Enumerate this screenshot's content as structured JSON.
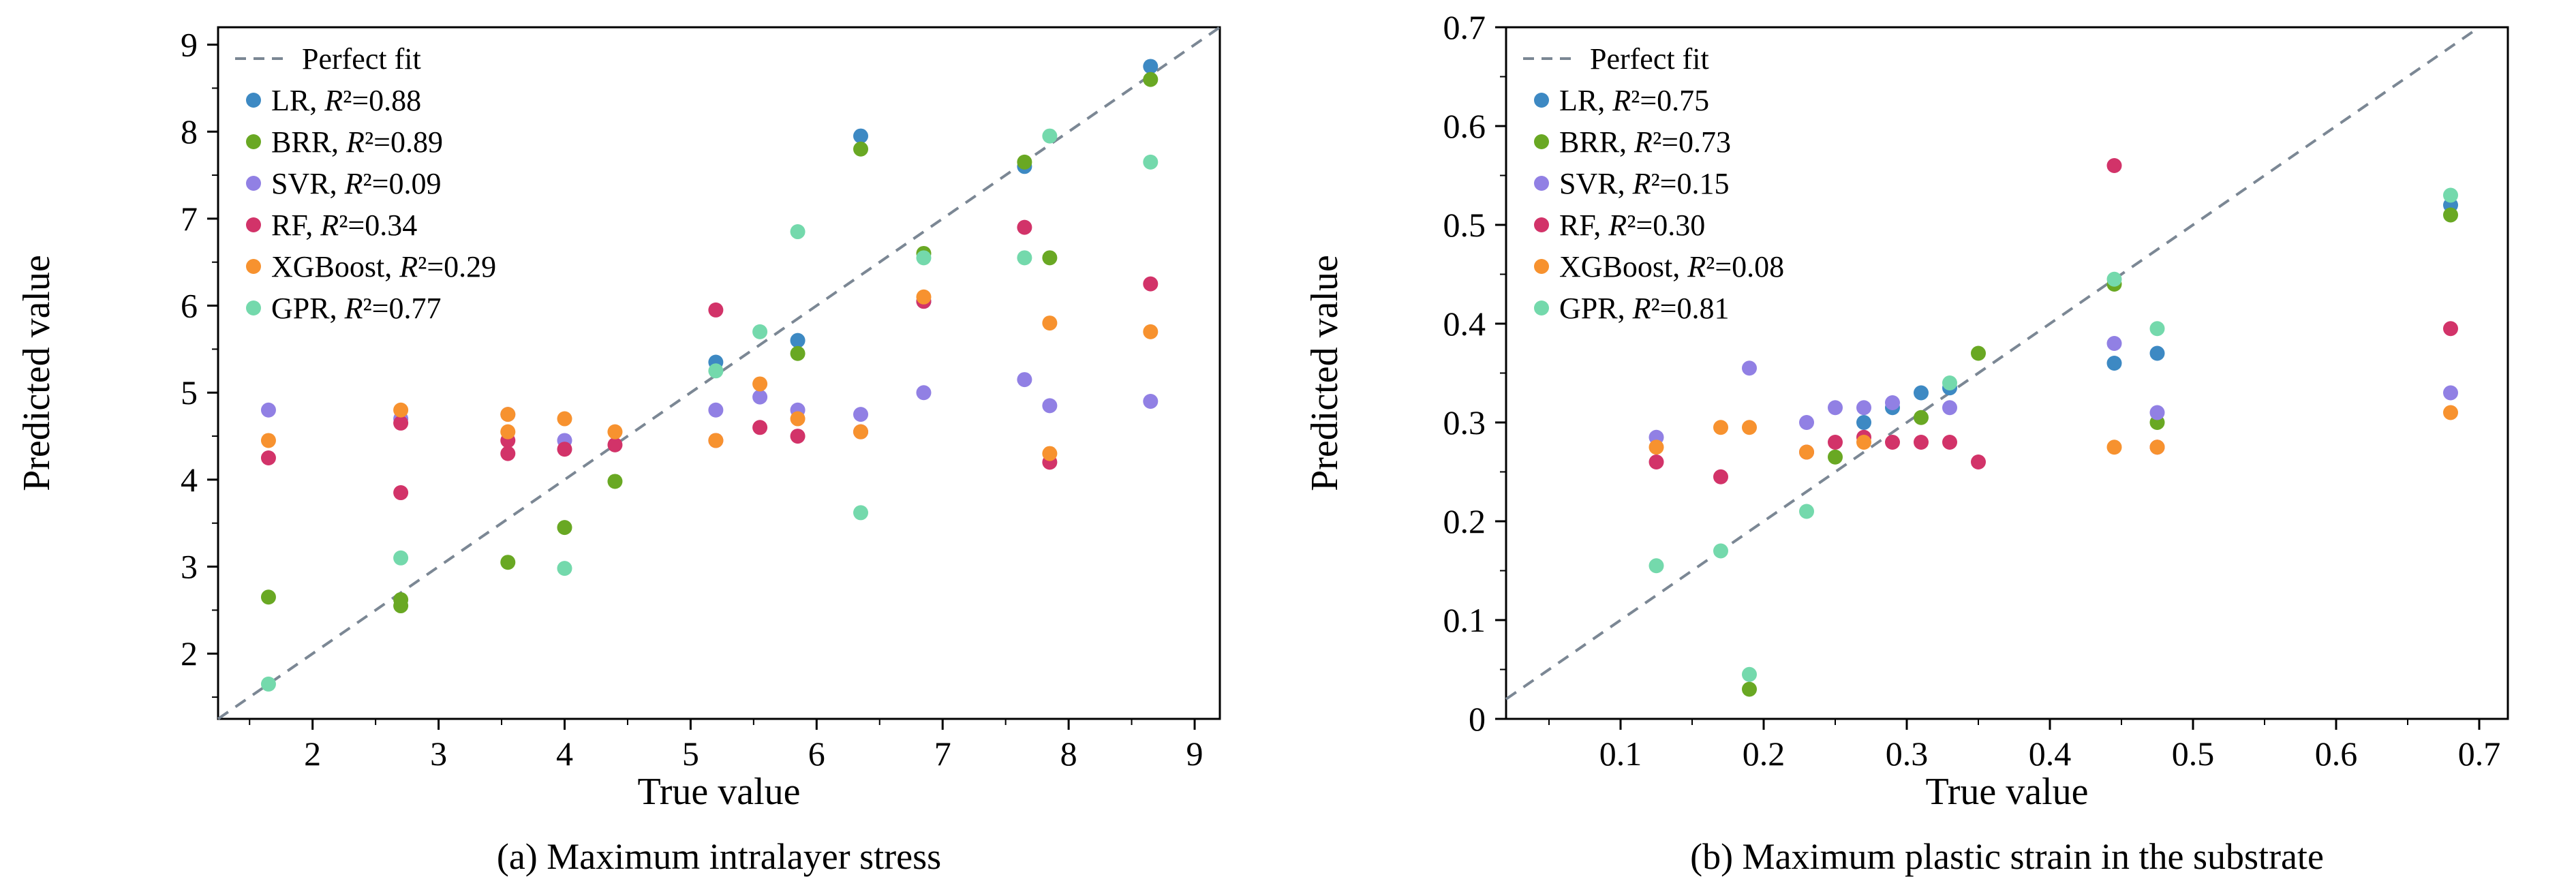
{
  "page": {
    "background": "#ffffff"
  },
  "chart_data": [
    {
      "type": "scatter",
      "caption": "(a) Maximum intralayer stress",
      "xlabel": "True value",
      "ylabel": "Predicted value",
      "xlim": [
        1.25,
        9.2
      ],
      "ylim": [
        1.25,
        9.2
      ],
      "x_minor_step": 0.5,
      "y_minor_step": 0.5,
      "xticks": {
        "values": [
          2,
          3,
          4,
          5,
          6,
          7,
          8,
          9
        ],
        "labels": [
          "2",
          "3",
          "4",
          "5",
          "6",
          "7",
          "8",
          "9"
        ]
      },
      "yticks": {
        "values": [
          2,
          3,
          4,
          5,
          6,
          7,
          8,
          9
        ],
        "labels": [
          "2",
          "3",
          "4",
          "5",
          "6",
          "7",
          "8",
          "9"
        ]
      },
      "grid": false,
      "legend_position": "top-left",
      "perfect_fit": {
        "label": "Perfect fit",
        "color": "#7b8794"
      },
      "series": [
        {
          "name": "LR",
          "r2": "0.88",
          "color": "#3d89c3",
          "points": [
            [
              5.2,
              5.35
            ],
            [
              5.85,
              5.6
            ],
            [
              6.35,
              7.95
            ],
            [
              6.85,
              6.05
            ],
            [
              7.65,
              7.6
            ],
            [
              8.65,
              8.75
            ]
          ]
        },
        {
          "name": "BRR",
          "r2": "0.89",
          "color": "#69a823",
          "points": [
            [
              1.65,
              2.65
            ],
            [
              2.7,
              2.55
            ],
            [
              2.7,
              2.62
            ],
            [
              3.55,
              3.05
            ],
            [
              4.0,
              3.45
            ],
            [
              4.4,
              3.98
            ],
            [
              5.85,
              5.45
            ],
            [
              6.35,
              7.8
            ],
            [
              6.85,
              6.6
            ],
            [
              7.65,
              7.65
            ],
            [
              7.85,
              6.55
            ],
            [
              8.65,
              8.6
            ]
          ]
        },
        {
          "name": "SVR",
          "r2": "0.09",
          "color": "#9180e4",
          "points": [
            [
              1.65,
              4.8
            ],
            [
              2.7,
              4.7
            ],
            [
              3.55,
              4.75
            ],
            [
              4.0,
              4.45
            ],
            [
              5.2,
              4.8
            ],
            [
              5.55,
              4.95
            ],
            [
              5.85,
              4.8
            ],
            [
              6.35,
              4.75
            ],
            [
              6.85,
              5.0
            ],
            [
              7.65,
              5.15
            ],
            [
              7.85,
              4.85
            ],
            [
              8.65,
              4.9
            ]
          ]
        },
        {
          "name": "RF",
          "r2": "0.34",
          "color": "#d23369",
          "points": [
            [
              1.65,
              4.25
            ],
            [
              2.7,
              3.85
            ],
            [
              2.7,
              4.65
            ],
            [
              3.55,
              4.3
            ],
            [
              3.55,
              4.45
            ],
            [
              4.0,
              4.35
            ],
            [
              4.4,
              4.4
            ],
            [
              5.2,
              4.45
            ],
            [
              5.2,
              5.95
            ],
            [
              5.55,
              4.6
            ],
            [
              5.85,
              4.5
            ],
            [
              6.35,
              4.55
            ],
            [
              6.85,
              6.05
            ],
            [
              7.65,
              6.9
            ],
            [
              7.85,
              4.2
            ],
            [
              8.65,
              6.25
            ]
          ]
        },
        {
          "name": "XGBoost",
          "r2": "0.29",
          "color": "#f7922f",
          "points": [
            [
              1.65,
              4.45
            ],
            [
              2.7,
              4.8
            ],
            [
              3.55,
              4.55
            ],
            [
              3.55,
              4.75
            ],
            [
              4.0,
              4.7
            ],
            [
              4.4,
              4.55
            ],
            [
              5.2,
              4.45
            ],
            [
              5.55,
              5.1
            ],
            [
              5.85,
              4.7
            ],
            [
              6.35,
              4.55
            ],
            [
              6.85,
              6.1
            ],
            [
              7.85,
              5.8
            ],
            [
              7.85,
              4.3
            ],
            [
              8.65,
              5.7
            ]
          ]
        },
        {
          "name": "GPR",
          "r2": "0.77",
          "color": "#74d9ac",
          "points": [
            [
              1.65,
              1.65
            ],
            [
              2.7,
              3.1
            ],
            [
              4.0,
              2.98
            ],
            [
              5.2,
              5.25
            ],
            [
              5.55,
              5.7
            ],
            [
              5.85,
              6.85
            ],
            [
              6.35,
              3.62
            ],
            [
              6.85,
              6.55
            ],
            [
              7.65,
              6.55
            ],
            [
              7.85,
              7.95
            ],
            [
              8.65,
              7.65
            ]
          ]
        }
      ]
    },
    {
      "type": "scatter",
      "caption": "(b) Maximum plastic strain in the substrate",
      "xlabel": "True value",
      "ylabel": "Predicted value",
      "xlim": [
        0.02,
        0.72
      ],
      "ylim": [
        0,
        0.7
      ],
      "x_minor_step": 0.05,
      "y_minor_step": 0.05,
      "xticks": {
        "values": [
          0.1,
          0.2,
          0.3,
          0.4,
          0.5,
          0.6,
          0.7
        ],
        "labels": [
          "0.1",
          "0.2",
          "0.3",
          "0.4",
          "0.5",
          "0.6",
          "0.7"
        ]
      },
      "yticks": {
        "values": [
          0,
          0.1,
          0.2,
          0.3,
          0.4,
          0.5,
          0.6,
          0.7
        ],
        "labels": [
          "0",
          "0.1",
          "0.2",
          "0.3",
          "0.4",
          "0.5",
          "0.6",
          "0.7"
        ]
      },
      "grid": false,
      "legend_position": "top-left",
      "perfect_fit": {
        "label": "Perfect fit",
        "color": "#7b8794"
      },
      "series": [
        {
          "name": "LR",
          "r2": "0.75",
          "color": "#3d89c3",
          "points": [
            [
              0.27,
              0.3
            ],
            [
              0.29,
              0.315
            ],
            [
              0.31,
              0.33
            ],
            [
              0.33,
              0.335
            ],
            [
              0.445,
              0.36
            ],
            [
              0.475,
              0.37
            ],
            [
              0.68,
              0.52
            ]
          ]
        },
        {
          "name": "BRR",
          "r2": "0.73",
          "color": "#69a823",
          "points": [
            [
              0.19,
              0.03
            ],
            [
              0.25,
              0.265
            ],
            [
              0.31,
              0.305
            ],
            [
              0.35,
              0.37
            ],
            [
              0.445,
              0.44
            ],
            [
              0.475,
              0.3
            ],
            [
              0.68,
              0.51
            ]
          ]
        },
        {
          "name": "SVR",
          "r2": "0.15",
          "color": "#9180e4",
          "points": [
            [
              0.125,
              0.285
            ],
            [
              0.19,
              0.355
            ],
            [
              0.23,
              0.3
            ],
            [
              0.25,
              0.315
            ],
            [
              0.27,
              0.315
            ],
            [
              0.29,
              0.32
            ],
            [
              0.33,
              0.315
            ],
            [
              0.445,
              0.38
            ],
            [
              0.475,
              0.31
            ],
            [
              0.68,
              0.33
            ]
          ]
        },
        {
          "name": "RF",
          "r2": "0.30",
          "color": "#d23369",
          "points": [
            [
              0.125,
              0.26
            ],
            [
              0.17,
              0.245
            ],
            [
              0.23,
              0.27
            ],
            [
              0.25,
              0.28
            ],
            [
              0.27,
              0.285
            ],
            [
              0.29,
              0.28
            ],
            [
              0.31,
              0.28
            ],
            [
              0.33,
              0.28
            ],
            [
              0.35,
              0.26
            ],
            [
              0.445,
              0.56
            ],
            [
              0.475,
              0.275
            ],
            [
              0.68,
              0.395
            ]
          ]
        },
        {
          "name": "XGBoost",
          "r2": "0.08",
          "color": "#f7922f",
          "points": [
            [
              0.125,
              0.275
            ],
            [
              0.17,
              0.295
            ],
            [
              0.19,
              0.295
            ],
            [
              0.23,
              0.27
            ],
            [
              0.27,
              0.28
            ],
            [
              0.445,
              0.275
            ],
            [
              0.475,
              0.275
            ],
            [
              0.68,
              0.31
            ]
          ]
        },
        {
          "name": "GPR",
          "r2": "0.81",
          "color": "#74d9ac",
          "points": [
            [
              0.125,
              0.155
            ],
            [
              0.17,
              0.17
            ],
            [
              0.19,
              0.045
            ],
            [
              0.23,
              0.21
            ],
            [
              0.33,
              0.34
            ],
            [
              0.445,
              0.445
            ],
            [
              0.475,
              0.395
            ],
            [
              0.68,
              0.53
            ]
          ]
        }
      ]
    }
  ]
}
